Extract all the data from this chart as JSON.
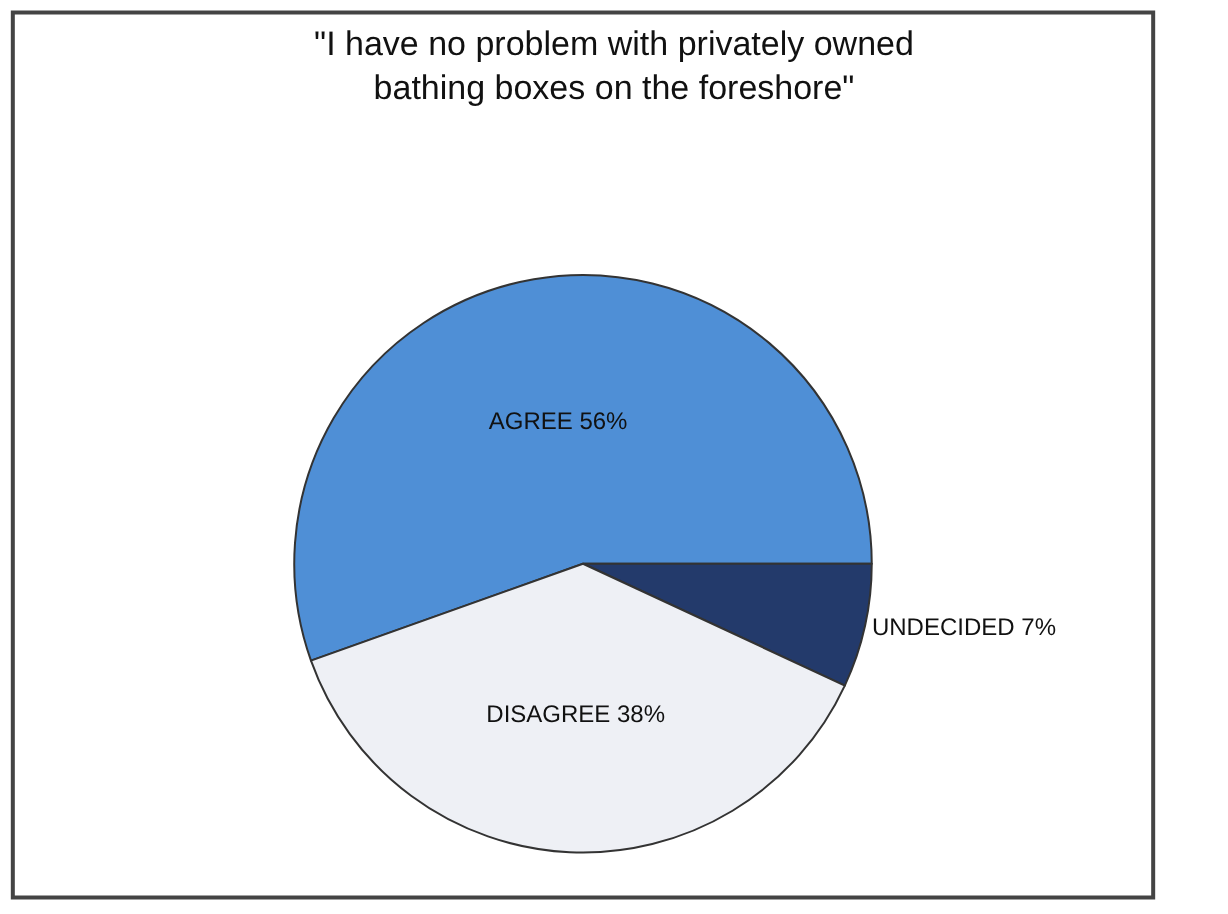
{
  "chart_data": {
    "type": "pie",
    "title": "\"I have no problem with privately owned\nbathing boxes on the foreshore\"",
    "categories": [
      "AGREE",
      "UNDECIDED",
      "DISAGREE"
    ],
    "values": [
      56,
      7,
      38
    ],
    "value_labels": [
      "56%",
      "7%",
      "38%"
    ],
    "colors": [
      "#4f8fd6",
      "#233a6b",
      "#eef0f5"
    ],
    "legend": false
  }
}
